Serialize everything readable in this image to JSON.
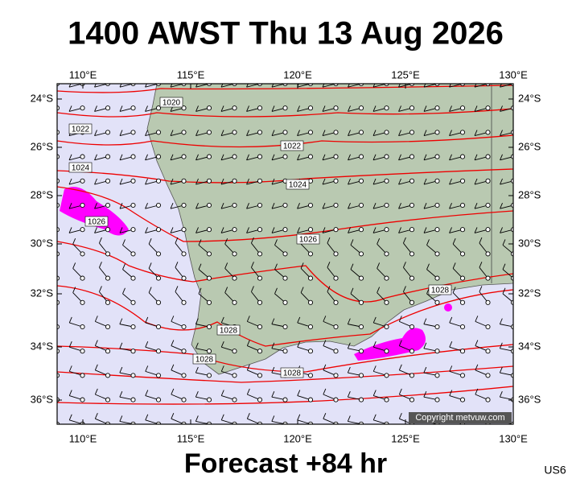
{
  "header": {
    "title": "1400 AWST Thu 13 Aug 2026"
  },
  "map": {
    "lon_labels": [
      "110°E",
      "115°E",
      "120°E",
      "125°E",
      "130°E"
    ],
    "lat_labels": [
      "24°S",
      "26°S",
      "28°S",
      "30°S",
      "32°S",
      "34°S",
      "36°S"
    ],
    "isobar_labels": [
      1020,
      1022,
      1024,
      1026,
      1022,
      1024,
      1026,
      1028,
      1028,
      1028,
      1028
    ],
    "copyright": "Copyright metvuw.com"
  },
  "footer": {
    "forecast": "Forecast +84 hr",
    "code": "US6"
  }
}
